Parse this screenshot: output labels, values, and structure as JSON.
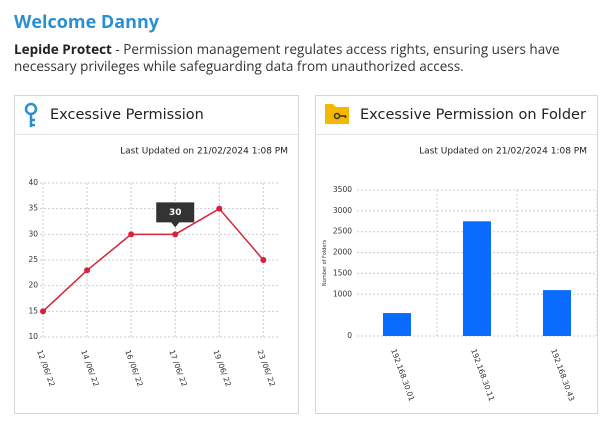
{
  "header": {
    "title": "Welcome Danny",
    "brand": "Lepide Protect",
    "description": " - Permission management regulates access rights, ensuring users have necessary privileges while safeguarding data from unauthorized access."
  },
  "chart_data": [
    {
      "type": "line",
      "title": "Excessive Permission",
      "subtitle": "Last Updated on 21/02/2024 1:08 PM",
      "categories": [
        "12 /06/ 22",
        "14 /06/ 22",
        "16 /06/ 22",
        "17 /06/ 22",
        "19 /06/ 22",
        "23 /06/ 22"
      ],
      "values": [
        15,
        23,
        30,
        30,
        35,
        25
      ],
      "color": "#d7223b",
      "ylim": [
        10,
        40
      ],
      "yticks": [
        10,
        15,
        20,
        25,
        30,
        35,
        40
      ],
      "grid": true,
      "tooltip_index": 3
    },
    {
      "type": "bar",
      "title": "Excessive Permission on Folder",
      "subtitle": "Last Updated on 21/02/2024 1:08 PM",
      "y_label": "Number of Folders",
      "categories": [
        "192.168.30.01",
        "192.168.30.11",
        "192.168.30.43"
      ],
      "values": [
        550,
        2750,
        1100
      ],
      "color": "#0a6cff",
      "ylim": [
        0,
        3500
      ],
      "yticks": [
        0,
        1000,
        1500,
        2000,
        2500,
        3000,
        3500
      ],
      "grid": true
    }
  ]
}
